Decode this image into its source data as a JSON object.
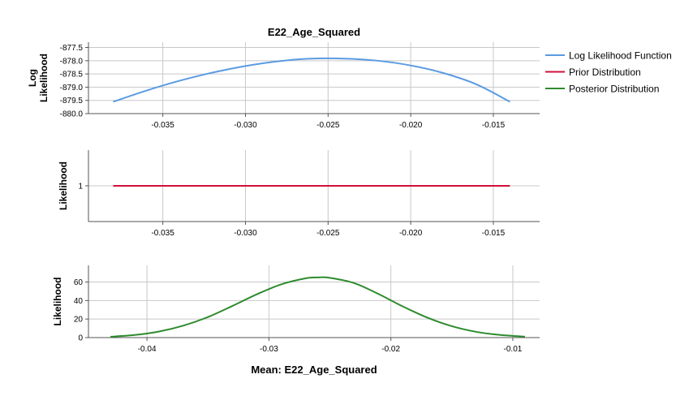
{
  "chart_data": {
    "title": "E22_Age_Squared",
    "xlabel": "Mean: E22_Age_Squared",
    "legend": {
      "placement": "right",
      "entries": [
        {
          "label": "Log Likelihood Function",
          "color": "#5b9be1"
        },
        {
          "label": "Prior Distribution",
          "color": "#d0103a"
        },
        {
          "label": "Posterior Distribution",
          "color": "#2e8b2e"
        }
      ]
    },
    "panels": [
      {
        "type": "line",
        "ylabel_lines": [
          "Log",
          "Likelihood"
        ],
        "color": "#5b9be1",
        "grid": true,
        "xlim": [
          -0.0395,
          -0.0122
        ],
        "ylim": [
          -880.0,
          -877.3
        ],
        "xticks": [
          -0.035,
          -0.03,
          -0.025,
          -0.02,
          -0.015
        ],
        "xtick_labels": [
          "-0.035",
          "-0.030",
          "-0.025",
          "-0.020",
          "-0.015"
        ],
        "yticks": [
          -880.0,
          -879.5,
          -879.0,
          -878.5,
          -878.0,
          -877.5
        ],
        "ytick_labels": [
          "-880.0",
          "-879.5",
          "-879.0",
          "-878.5",
          "-878.0",
          "-877.5"
        ],
        "x": [
          -0.038,
          -0.036,
          -0.034,
          -0.032,
          -0.03,
          -0.028,
          -0.026,
          -0.024,
          -0.022,
          -0.02,
          -0.018,
          -0.016,
          -0.014
        ],
        "y": [
          -879.55,
          -879.13,
          -878.76,
          -878.45,
          -878.2,
          -878.02,
          -877.92,
          -877.92,
          -878.0,
          -878.18,
          -878.47,
          -878.9,
          -879.55
        ]
      },
      {
        "type": "line",
        "ylabel_lines": [
          "Likelihood"
        ],
        "color": "#d0103a",
        "grid": true,
        "xlim": [
          -0.0395,
          -0.0122
        ],
        "ylim": [
          0.4,
          1.6
        ],
        "xticks": [
          -0.035,
          -0.03,
          -0.025,
          -0.02,
          -0.015
        ],
        "xtick_labels": [
          "-0.035",
          "-0.030",
          "-0.025",
          "-0.020",
          "-0.015"
        ],
        "yticks": [
          1
        ],
        "ytick_labels": [
          "1"
        ],
        "x": [
          -0.038,
          -0.014
        ],
        "y": [
          1,
          1
        ]
      },
      {
        "type": "line",
        "ylabel_lines": [
          "Likelihood"
        ],
        "color": "#2e8b2e",
        "grid": true,
        "xlim": [
          -0.0448,
          -0.0078
        ],
        "ylim": [
          0,
          78
        ],
        "xticks": [
          -0.04,
          -0.03,
          -0.02,
          -0.01
        ],
        "xtick_labels": [
          "-0.04",
          "-0.03",
          "-0.02",
          "-0.01"
        ],
        "yticks": [
          0,
          20,
          40,
          60
        ],
        "ytick_labels": [
          "0",
          "20",
          "40",
          "60"
        ],
        "x": [
          -0.043,
          -0.041,
          -0.039,
          -0.037,
          -0.035,
          -0.033,
          -0.031,
          -0.029,
          -0.027,
          -0.026,
          -0.025,
          -0.023,
          -0.021,
          -0.019,
          -0.017,
          -0.015,
          -0.013,
          -0.011,
          -0.009
        ],
        "y": [
          0.9,
          2.8,
          6.6,
          13,
          22.2,
          34.1,
          46.7,
          57.5,
          64,
          65,
          64.5,
          58.8,
          47,
          33.5,
          21.5,
          12.3,
          6.2,
          2.8,
          1.0
        ]
      }
    ]
  }
}
